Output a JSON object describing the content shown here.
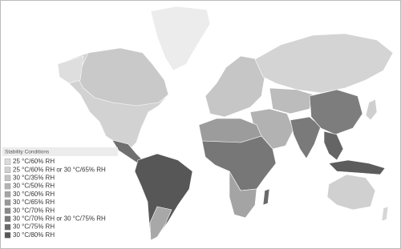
{
  "legend": {
    "title": "Stability Conditions",
    "items": [
      {
        "label": "25 °C/60% RH",
        "color": "#dcdcdc"
      },
      {
        "label": "25 °C/60% RH or 30 °C/65% RH",
        "color": "#d0d0d0"
      },
      {
        "label": "30 °C/35% RH",
        "color": "#c4c4c4"
      },
      {
        "label": "30 °C/50% RH",
        "color": "#b4b4b4"
      },
      {
        "label": "30 °C/60% RH",
        "color": "#a5a5a5"
      },
      {
        "label": "30 °C/65% RH",
        "color": "#979797"
      },
      {
        "label": "30 °C/70% RH",
        "color": "#898989"
      },
      {
        "label": "30 °C/70% RH or 30 °C/75% RH",
        "color": "#7a7a7a"
      },
      {
        "label": "30 °C/75% RH",
        "color": "#6a6a6a"
      },
      {
        "label": "30 °C/80% RH",
        "color": "#575757"
      }
    ]
  }
}
